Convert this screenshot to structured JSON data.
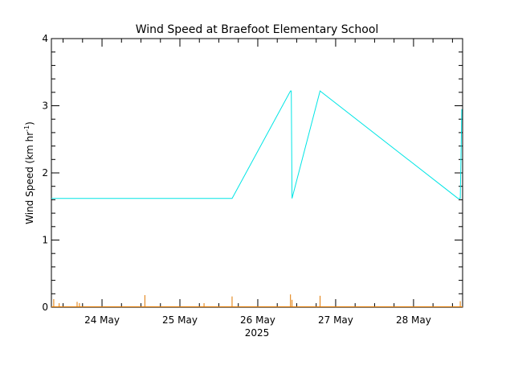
{
  "chart_data": {
    "type": "line",
    "title": "Wind Speed at Braefoot Elementary School",
    "ylabel": "Wind Speed (km hr",
    "ylabel_superscript": "-1",
    "ylabel_close": ")",
    "x_year_label": "2025",
    "xlim": [
      23.35,
      28.63
    ],
    "ylim": [
      0,
      4
    ],
    "yticks": [
      "0",
      "1",
      "2",
      "3",
      "4"
    ],
    "xticks": [
      {
        "value": 24,
        "label": "24 May"
      },
      {
        "value": 25,
        "label": "25 May"
      },
      {
        "value": 26,
        "label": "26 May"
      },
      {
        "value": 27,
        "label": "27 May"
      },
      {
        "value": 28,
        "label": "28 May"
      }
    ],
    "grid": false,
    "series": [
      {
        "color": "#00e5e5",
        "x": [
          23.35,
          25.67,
          26.42,
          26.43,
          26.44,
          26.8,
          28.57,
          28.6,
          28.62
        ],
        "y": [
          1.62,
          1.62,
          3.22,
          3.22,
          1.62,
          3.22,
          1.62,
          1.62,
          2.95
        ]
      },
      {
        "color": "#e07800",
        "type": "bars",
        "x": [
          23.38,
          23.45,
          23.68,
          23.71,
          24.55,
          25.31,
          25.67,
          26.42,
          26.44,
          26.8,
          28.6
        ],
        "y": [
          0.12,
          0.06,
          0.08,
          0.06,
          0.18,
          0.06,
          0.16,
          0.19,
          0.11,
          0.17,
          0.09
        ]
      }
    ]
  }
}
